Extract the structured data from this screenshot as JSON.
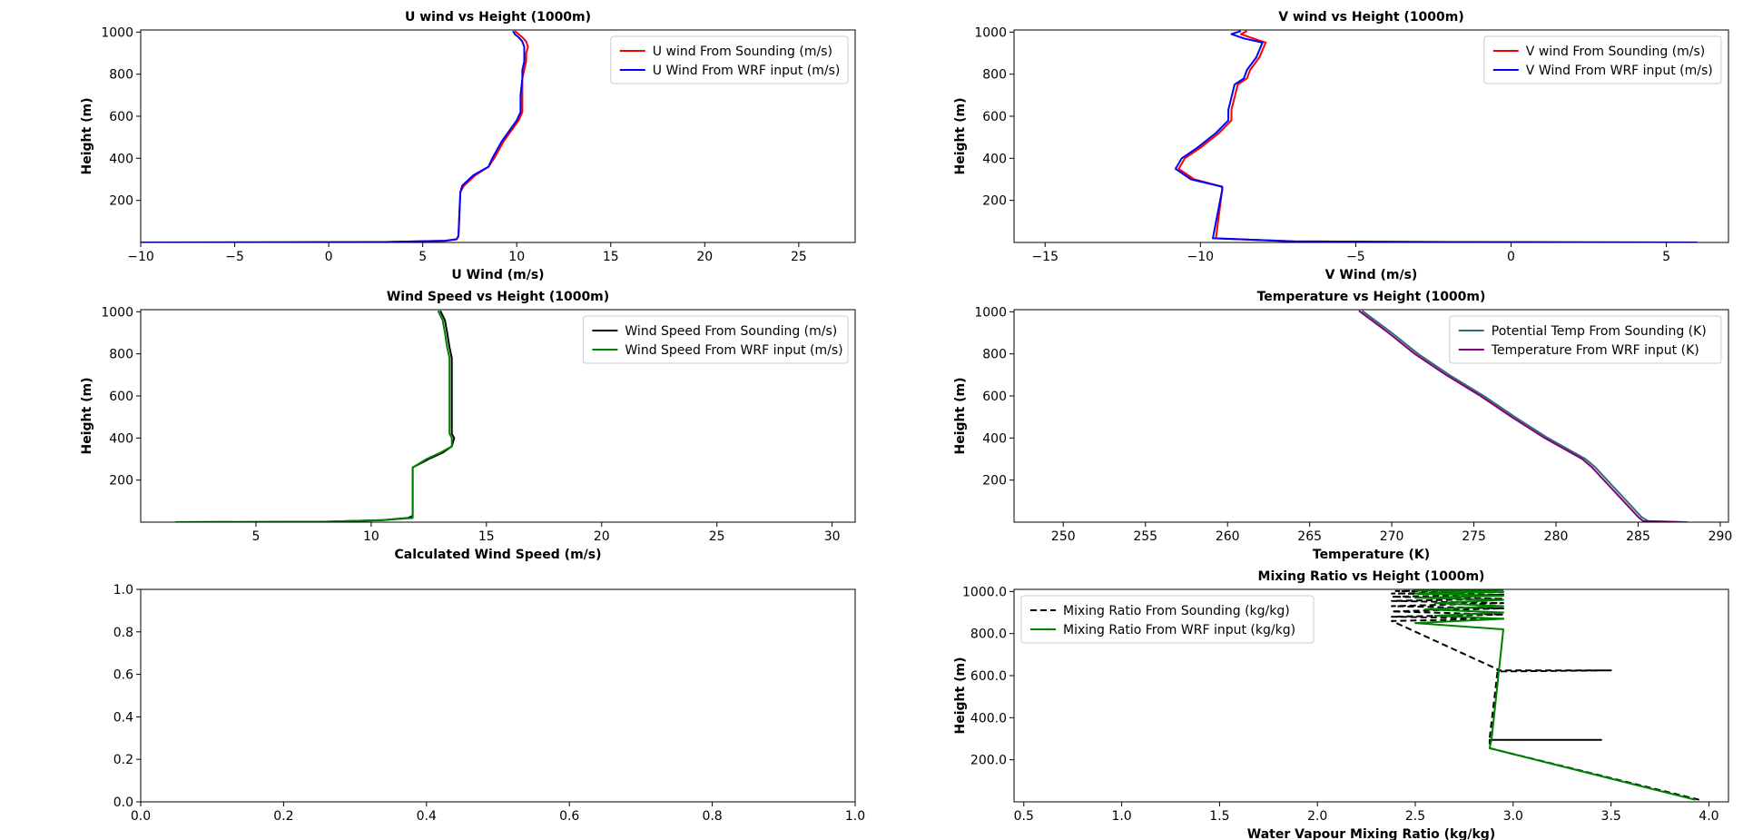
{
  "chart_data": [
    {
      "type": "line",
      "title": "U wind vs Height (1000m)",
      "xlabel": "U Wind (m/s)",
      "ylabel": "Height (m)",
      "xlim": [
        -10,
        28
      ],
      "ylim": [
        0,
        1010
      ],
      "xticks": [
        -10,
        -5,
        0,
        5,
        10,
        15,
        20,
        25
      ],
      "yticks": [
        200,
        400,
        600,
        800,
        1000
      ],
      "legend": "top-right",
      "series": [
        {
          "name": "U wind From Sounding (m/s)",
          "color": "#ff0000",
          "dash": "",
          "x": [
            -10,
            3,
            6.2,
            6.8,
            6.9,
            7,
            7.2,
            7.8,
            8.5,
            8.8,
            9.3,
            10.1,
            10.3,
            10.3,
            10.3,
            10.4,
            10.5,
            10.5,
            10.6,
            10.5,
            10.3,
            10.1,
            9.9
          ],
          "y": [
            0,
            2,
            8,
            15,
            30,
            240,
            270,
            320,
            360,
            400,
            480,
            580,
            620,
            700,
            780,
            820,
            860,
            900,
            930,
            955,
            975,
            990,
            1005
          ]
        },
        {
          "name": "U Wind From WRF input (m/s)",
          "color": "#0000ff",
          "dash": "",
          "x": [
            -10,
            3,
            6.2,
            6.8,
            6.9,
            7,
            7.1,
            7.7,
            8.5,
            8.7,
            9.2,
            10,
            10.2,
            10.2,
            10.3,
            10.3,
            10.4,
            10.4,
            10.4,
            10.3,
            10.1,
            9.9,
            9.8
          ],
          "y": [
            0,
            2,
            8,
            15,
            30,
            240,
            270,
            320,
            360,
            400,
            480,
            580,
            620,
            700,
            780,
            820,
            860,
            900,
            930,
            955,
            975,
            990,
            1005
          ]
        }
      ]
    },
    {
      "type": "line",
      "title": "V wind vs Height (1000m)",
      "xlabel": "V Wind (m/s)",
      "ylabel": "Height (m)",
      "xlim": [
        -16,
        7
      ],
      "ylim": [
        0,
        1010
      ],
      "xticks": [
        -15,
        -10,
        -5,
        0,
        5
      ],
      "yticks": [
        200,
        400,
        600,
        800,
        1000
      ],
      "legend": "top-right",
      "series": [
        {
          "name": "V wind From Sounding (m/s)",
          "color": "#ff0000",
          "dash": "",
          "x": [
            6,
            -2,
            -7,
            -9.5,
            -9.3,
            -9.3,
            -10.2,
            -10.7,
            -10.5,
            -10,
            -9.4,
            -9,
            -9,
            -8.8,
            -8.5,
            -8.4,
            -8.1,
            -7.9,
            -8.3,
            -8.7,
            -8.5
          ],
          "y": [
            0,
            2,
            5,
            20,
            250,
            265,
            300,
            350,
            400,
            450,
            520,
            580,
            630,
            750,
            780,
            820,
            880,
            950,
            970,
            990,
            1005
          ]
        },
        {
          "name": "V Wind From WRF input (m/s)",
          "color": "#0000ff",
          "dash": "",
          "x": [
            6,
            -2,
            -7,
            -9.6,
            -9.3,
            -9.3,
            -10.3,
            -10.8,
            -10.6,
            -10.1,
            -9.5,
            -9.1,
            -9.1,
            -8.9,
            -8.6,
            -8.5,
            -8.2,
            -8,
            -8.6,
            -9,
            -8.7
          ],
          "y": [
            0,
            2,
            5,
            20,
            250,
            265,
            300,
            350,
            400,
            450,
            520,
            580,
            630,
            750,
            780,
            820,
            880,
            950,
            970,
            990,
            1005
          ]
        }
      ]
    },
    {
      "type": "line",
      "title": "Wind Speed vs Height (1000m)",
      "xlabel": "Calculated Wind Speed (m/s)",
      "ylabel": "Height (m)",
      "xlim": [
        0,
        31
      ],
      "ylim": [
        0,
        1010
      ],
      "xticks": [
        5,
        10,
        15,
        20,
        25,
        30
      ],
      "yticks": [
        200,
        400,
        600,
        800,
        1000
      ],
      "legend": "top-right",
      "series": [
        {
          "name": "Wind Speed From Sounding (m/s)",
          "color": "#000000",
          "dash": "",
          "x": [
            1.5,
            8,
            10.5,
            11.6,
            11.8,
            11.8,
            12.5,
            13.1,
            13.5,
            13.6,
            13.5,
            13.5,
            13.5,
            13.4,
            13.3,
            13.2,
            13
          ],
          "y": [
            0,
            2,
            10,
            20,
            30,
            260,
            300,
            330,
            360,
            400,
            420,
            600,
            780,
            830,
            900,
            960,
            1005
          ]
        },
        {
          "name": "Wind Speed From WRF input (m/s)",
          "color": "#008000",
          "dash": "",
          "x": [
            1.5,
            8,
            10.5,
            11.8,
            11.8,
            11.8,
            12.4,
            13,
            13.5,
            13.5,
            13.4,
            13.4,
            13.4,
            13.3,
            13.2,
            13.1,
            12.9
          ],
          "y": [
            0,
            2,
            10,
            20,
            30,
            260,
            300,
            330,
            360,
            400,
            420,
            600,
            780,
            830,
            900,
            960,
            1005
          ]
        }
      ]
    },
    {
      "type": "line",
      "title": "Temperature vs Height (1000m)",
      "xlabel": "Temperature (K)",
      "ylabel": "Height (m)",
      "xlim": [
        247,
        290.5
      ],
      "ylim": [
        0,
        1010
      ],
      "xticks": [
        250,
        255,
        260,
        265,
        270,
        275,
        280,
        285,
        290
      ],
      "yticks": [
        200,
        400,
        600,
        800,
        1000
      ],
      "legend": "top-right",
      "series": [
        {
          "name": "Potential Temp From Sounding (K)",
          "color": "#2f6f6f",
          "dash": "",
          "x": [
            288,
            285.6,
            285.2,
            282.4,
            281.8,
            279.5,
            277.5,
            275.6,
            273.5,
            271.6,
            270,
            268.2
          ],
          "y": [
            0,
            5,
            25,
            260,
            300,
            400,
            500,
            600,
            700,
            800,
            900,
            1005
          ]
        },
        {
          "name": "Temperature From WRF input (K)",
          "color": "#800080",
          "dash": "",
          "x": [
            287.5,
            285.3,
            285,
            282.2,
            281.6,
            279.3,
            277.3,
            275.4,
            273.3,
            271.4,
            269.8,
            268
          ],
          "y": [
            0,
            5,
            25,
            260,
            300,
            400,
            500,
            600,
            700,
            800,
            900,
            1005
          ]
        }
      ]
    },
    {
      "type": "line",
      "title": "",
      "xlabel": "",
      "ylabel": "",
      "xlim": [
        0,
        1
      ],
      "ylim": [
        0,
        1
      ],
      "xticks": [
        0.0,
        0.2,
        0.4,
        0.6,
        0.8,
        1.0
      ],
      "yticks": [
        0.0,
        0.2,
        0.4,
        0.6,
        0.8,
        1.0
      ],
      "tickdecimals": 1,
      "legend": "none",
      "series": []
    },
    {
      "type": "line",
      "title": "Mixing Ratio vs Height (1000m)",
      "xlabel": "Water Vapour Mixing Ratio (kg/kg)",
      "ylabel": "Height (m)",
      "xlim": [
        0.45,
        4.1
      ],
      "ylim": [
        0,
        1010
      ],
      "xticks": [
        0.5,
        1.0,
        1.5,
        2.0,
        2.5,
        3.0,
        3.5,
        4.0
      ],
      "yticks": [
        200,
        400,
        600,
        800,
        1000
      ],
      "tickdecimals": 1,
      "legend": "top-left",
      "series": [
        {
          "name": "Mixing Ratio From Sounding (kg/kg)",
          "color": "#000000",
          "dash": "7,4",
          "x": [
            3.95,
            2.88,
            2.88,
            3.45,
            2.88,
            2.88,
            2.92,
            3.5,
            2.92,
            2.92,
            2.38,
            2.95,
            2.38,
            2.95,
            2.38,
            2.95,
            2.38,
            2.95,
            2.38,
            2.95,
            2.38,
            2.95,
            2.38,
            2.95,
            2.4,
            2.95
          ],
          "y": [
            10,
            255,
            295,
            295,
            295,
            300,
            620,
            625,
            625,
            630,
            860,
            870,
            880,
            890,
            905,
            920,
            930,
            945,
            955,
            965,
            975,
            985,
            990,
            998,
            1002,
            1008
          ]
        },
        {
          "name": "Mixing Ratio From WRF input (kg/kg)",
          "color": "#008000",
          "dash": "",
          "x": [
            3.93,
            2.88,
            2.89,
            2.95,
            2.5,
            2.95,
            2.6,
            2.95,
            2.55,
            2.95,
            2.6,
            2.95,
            2.5,
            2.95,
            2.5,
            2.95,
            2.5,
            2.95
          ],
          "y": [
            10,
            255,
            300,
            820,
            850,
            870,
            885,
            900,
            915,
            930,
            945,
            960,
            970,
            980,
            990,
            998,
            1004,
            1008
          ]
        }
      ]
    }
  ]
}
